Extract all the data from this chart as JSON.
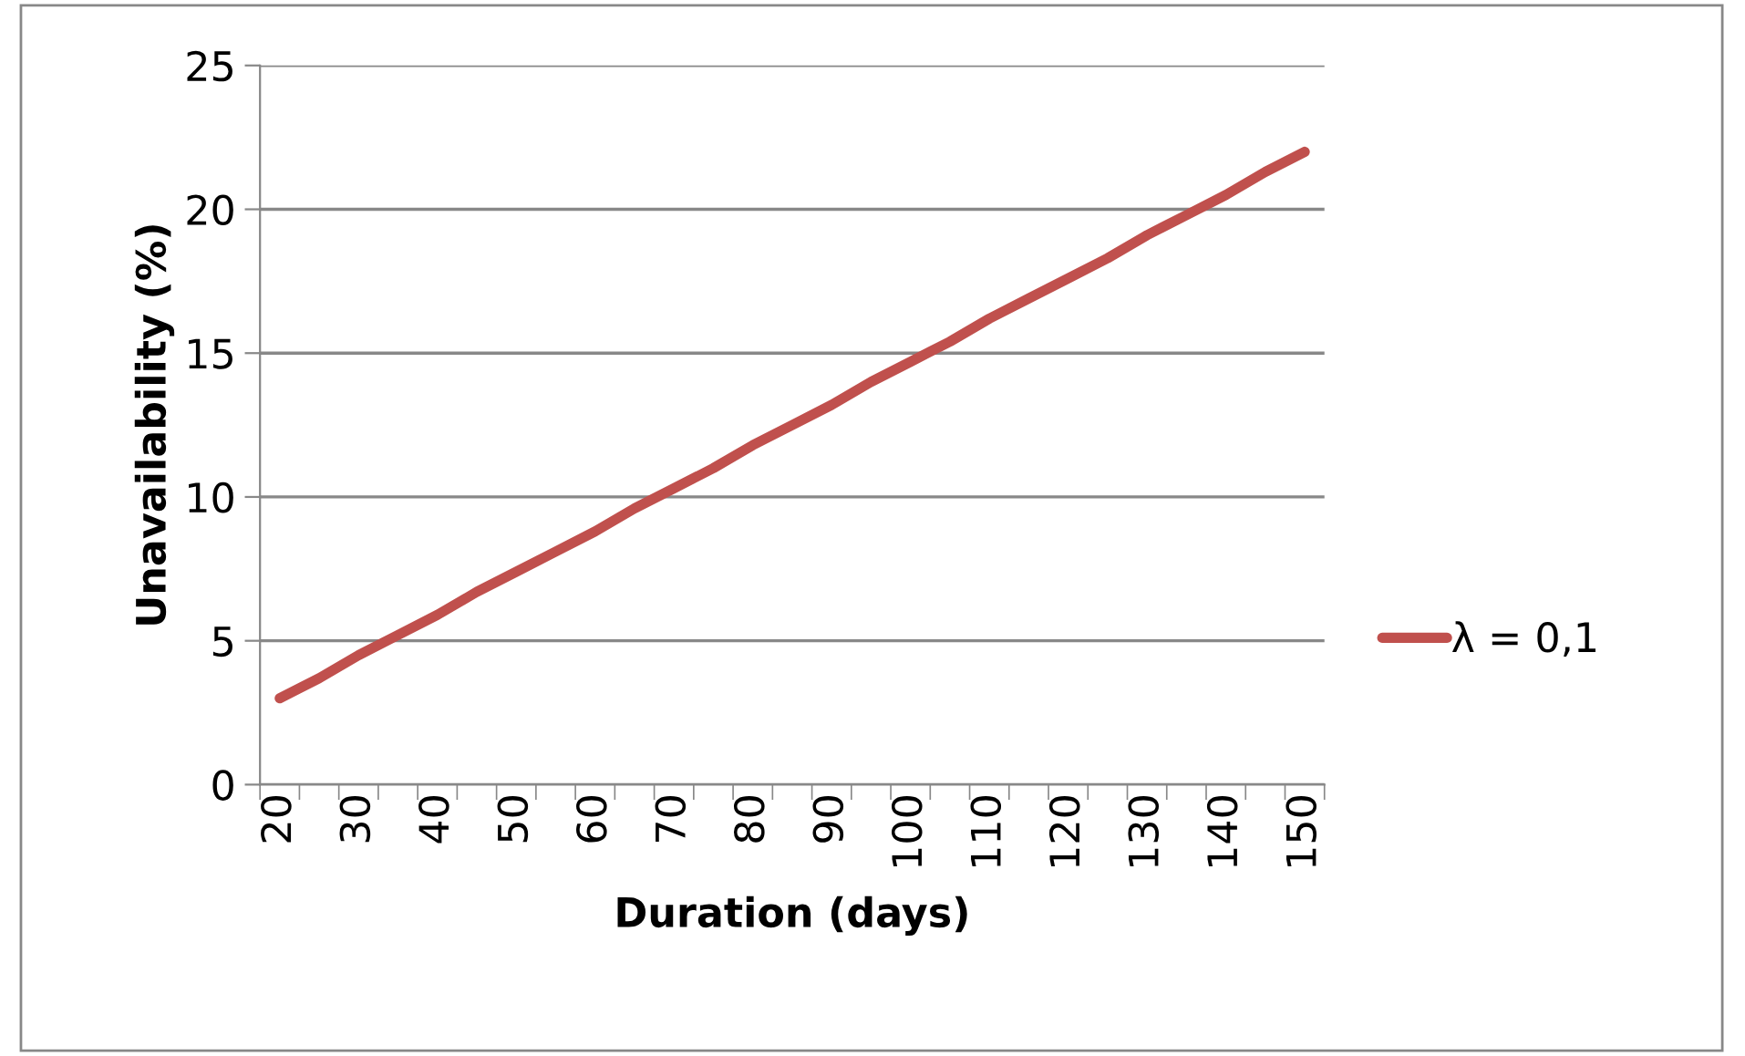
{
  "chart_data": {
    "type": "line",
    "xlabel": "Duration (days)",
    "ylabel": "Unavailability (%)",
    "categories": [
      "20",
      null,
      "30",
      null,
      "40",
      null,
      "50",
      null,
      "60",
      null,
      "70",
      null,
      "80",
      null,
      "90",
      null,
      "100",
      null,
      "110",
      null,
      "120",
      null,
      "130",
      null,
      "140",
      null,
      "150"
    ],
    "series": [
      {
        "name": "λ = 0,1",
        "color": "#c0504d",
        "values": [
          3.0,
          3.7,
          4.5,
          5.2,
          5.9,
          6.7,
          7.4,
          8.1,
          8.8,
          9.6,
          10.3,
          11.0,
          11.8,
          12.5,
          13.2,
          14.0,
          14.7,
          15.4,
          16.2,
          16.9,
          17.6,
          18.3,
          19.1,
          19.8,
          20.5,
          21.3,
          22.0
        ]
      }
    ],
    "ylim": [
      0,
      25
    ],
    "yticks": [
      0,
      5,
      10,
      15,
      20,
      25
    ],
    "grid": "y",
    "legend": "right",
    "marker": "none",
    "line_style": "solid"
  }
}
